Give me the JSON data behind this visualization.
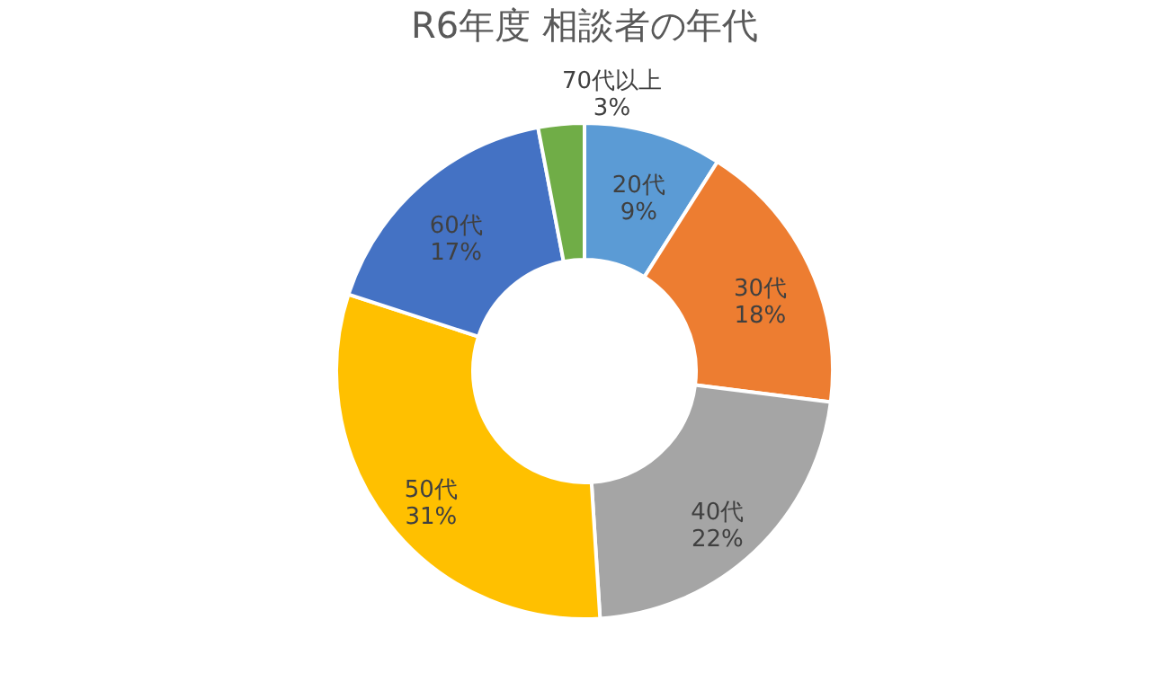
{
  "chart_data": {
    "type": "donut",
    "title": "R6年度 相談者の年代",
    "categories": [
      "20代",
      "30代",
      "40代",
      "50代",
      "60代",
      "70代以上"
    ],
    "values": [
      9,
      18,
      22,
      31,
      17,
      3
    ],
    "value_labels": [
      "9%",
      "18%",
      "22%",
      "31%",
      "17%",
      "3%"
    ],
    "colors": [
      "#5b9bd5",
      "#ed7d31",
      "#a5a5a5",
      "#ffc000",
      "#4472c4",
      "#70ad47"
    ],
    "legend": false
  }
}
